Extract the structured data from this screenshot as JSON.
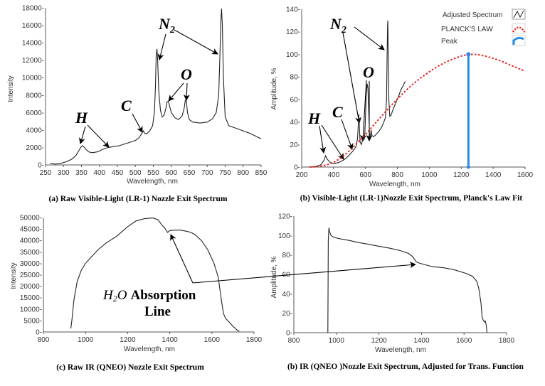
{
  "chart_data": [
    {
      "id": "a",
      "type": "line",
      "title": "(a) Raw Visible-Light (LR-1) Nozzle Exit Spectrum",
      "xlabel": "Wavelength, nm",
      "ylabel": "Intensity",
      "xlim": [
        250,
        850
      ],
      "ylim": [
        0,
        18000
      ],
      "xticks": [
        250,
        300,
        350,
        400,
        450,
        500,
        550,
        600,
        650,
        700,
        750,
        800,
        850
      ],
      "yticks": [
        0,
        2000,
        4000,
        6000,
        8000,
        10000,
        12000,
        14000,
        16000,
        18000
      ],
      "ytick_suffix": "-",
      "series": [
        {
          "name": "Raw spectrum",
          "x": [
            263,
            275,
            290,
            310,
            325,
            335,
            342,
            348,
            352,
            356,
            362,
            370,
            380,
            395,
            410,
            425,
            440,
            455,
            470,
            485,
            500,
            510,
            518,
            522,
            526,
            532,
            540,
            548,
            553,
            556,
            558,
            560,
            562,
            565,
            570,
            575,
            580,
            585,
            588,
            592,
            595,
            600,
            610,
            620,
            630,
            636,
            639,
            642,
            645,
            650,
            660,
            680,
            700,
            715,
            725,
            732,
            735,
            738,
            740,
            742,
            745,
            750,
            760,
            780,
            800,
            820,
            840,
            850
          ],
          "y": [
            200,
            100,
            150,
            400,
            700,
            1100,
            1600,
            2000,
            2200,
            2100,
            1800,
            1500,
            1400,
            1500,
            1800,
            2000,
            2100,
            2200,
            2400,
            2600,
            2800,
            3100,
            3600,
            3900,
            3600,
            3600,
            3900,
            4500,
            6000,
            9000,
            12500,
            13300,
            12000,
            8500,
            6200,
            5500,
            5700,
            6500,
            7200,
            7300,
            6800,
            6000,
            5400,
            5200,
            5600,
            6500,
            7400,
            7300,
            6000,
            5200,
            4900,
            4800,
            4900,
            5300,
            6000,
            8000,
            12000,
            16500,
            17900,
            16000,
            10000,
            5500,
            4500,
            4200,
            3900,
            3600,
            3200,
            3000
          ]
        }
      ],
      "annotations": [
        {
          "text": "H"
        },
        {
          "text": "C"
        },
        {
          "text": "N",
          "subscript": "2"
        },
        {
          "text": "O"
        }
      ]
    },
    {
      "id": "b",
      "type": "line",
      "title": "(b) Visible-Light (LR-1)Nozzle Exit Spectrum, Planck's Law Fit",
      "xlabel": "Wavelength, nm",
      "ylabel": "Amplitude, %",
      "xlim": [
        200,
        1600
      ],
      "ylim": [
        0,
        140
      ],
      "xticks": [
        200,
        400,
        600,
        800,
        1000,
        1200,
        1400,
        1600
      ],
      "yticks": [
        0,
        20,
        40,
        60,
        80,
        100,
        120,
        140
      ],
      "ytick_suffix": "-",
      "legend": [
        "Adjusted Spectrum",
        "PLANCK'S LAW",
        "Peak"
      ],
      "series": [
        {
          "name": "Adjusted Spectrum",
          "x": [
            255,
            290,
            320,
            340,
            350,
            360,
            380,
            400,
            430,
            460,
            480,
            500,
            520,
            540,
            550,
            555,
            558,
            562,
            566,
            575,
            585,
            592,
            596,
            600,
            605,
            610,
            615,
            620,
            625,
            630,
            635,
            640,
            650,
            660,
            680,
            700,
            715,
            725,
            732,
            735,
            738,
            740,
            742,
            746,
            752,
            760,
            775,
            790,
            805,
            820,
            835,
            845,
            850
          ],
          "y": [
            0,
            0.5,
            2,
            6,
            10,
            7,
            4,
            3,
            4,
            6,
            8,
            11,
            14,
            18,
            25,
            38,
            47,
            35,
            22,
            20,
            27,
            25,
            30,
            45,
            65,
            74,
            70,
            50,
            30,
            26,
            33,
            28,
            27,
            28,
            31,
            35,
            40,
            44,
            60,
            95,
            125,
            130,
            100,
            60,
            45,
            46,
            52,
            57,
            62,
            68,
            72,
            75,
            76
          ]
        },
        {
          "name": "PLANCK'S LAW",
          "x": [
            250,
            300,
            350,
            400,
            450,
            500,
            550,
            600,
            650,
            700,
            750,
            800,
            850,
            900,
            950,
            1000,
            1050,
            1100,
            1150,
            1200,
            1250,
            1300,
            1350,
            1400,
            1450,
            1500,
            1550,
            1600
          ],
          "y": [
            0,
            0.3,
            1.5,
            4,
            8.5,
            14.5,
            21.5,
            29,
            37,
            45,
            53,
            60.5,
            67.5,
            74,
            79.5,
            84.5,
            89,
            93,
            96,
            98.5,
            100,
            99.8,
            98.5,
            96.5,
            94,
            91,
            88,
            85
          ]
        }
      ],
      "peak": {
        "x": 1245,
        "y": 100
      }
    },
    {
      "id": "c",
      "type": "line",
      "title": "(c) Raw IR (QNEO) Nozzle Exit Spectrum",
      "xlabel": "Wavelength, nm",
      "ylabel": "Intensity",
      "xlim": [
        800,
        1800
      ],
      "ylim": [
        0,
        50000
      ],
      "xticks": [
        800,
        1000,
        1200,
        1400,
        1600,
        1800
      ],
      "yticks": [
        0,
        5000,
        10000,
        15000,
        20000,
        25000,
        30000,
        35000,
        40000,
        45000,
        50000
      ],
      "ytick_suffix": "-",
      "series": [
        {
          "name": "Raw IR spectrum",
          "x": [
            930,
            935,
            945,
            960,
            980,
            1000,
            1030,
            1060,
            1100,
            1150,
            1200,
            1240,
            1280,
            1320,
            1345,
            1360,
            1375,
            1390,
            1400,
            1420,
            1450,
            1480,
            1500,
            1520,
            1550,
            1580,
            1610,
            1630,
            1645,
            1655,
            1665,
            1680,
            1700,
            1720,
            1730
          ],
          "y": [
            1500,
            5000,
            14000,
            22000,
            27000,
            30000,
            33000,
            36000,
            39000,
            42000,
            46000,
            48500,
            49500,
            49800,
            49000,
            47000,
            45500,
            43500,
            44300,
            44500,
            44500,
            44000,
            43500,
            42500,
            40000,
            36000,
            30000,
            24000,
            14000,
            8000,
            6000,
            4500,
            2500,
            800,
            300
          ]
        }
      ]
    },
    {
      "id": "d",
      "type": "line",
      "title": "(b) IR (QNEO )Nozzle Exit Spectrum, Adjusted for Trans. Function",
      "xlabel": "Wavelength, nm",
      "ylabel": "Amplitude, %",
      "xlim": [
        800,
        1800
      ],
      "ylim": [
        0,
        120
      ],
      "xticks": [
        800,
        1000,
        1200,
        1400,
        1600,
        1800
      ],
      "yticks": [
        0,
        20,
        40,
        60,
        80,
        100,
        120
      ],
      "ytick_suffix": "-",
      "series": [
        {
          "name": "Adjusted IR spectrum",
          "x": [
            960,
            962,
            965,
            968,
            975,
            990,
            1020,
            1060,
            1100,
            1150,
            1200,
            1250,
            1300,
            1340,
            1360,
            1375,
            1385,
            1400,
            1450,
            1500,
            1550,
            1580,
            1610,
            1640,
            1660,
            1670,
            1680,
            1685,
            1690,
            1695,
            1700,
            1705,
            1708
          ],
          "y": [
            0,
            95,
            108,
            104,
            100,
            98,
            96.5,
            95,
            93,
            91,
            89,
            87,
            84.5,
            81.5,
            78,
            73,
            72,
            71,
            68,
            67,
            65,
            63,
            61,
            58,
            53,
            45,
            30,
            16,
            13,
            11,
            12,
            7,
            0
          ]
        }
      ]
    }
  ],
  "figure_text": {
    "water_label_h": "H",
    "water_label_2": "2",
    "water_label_o": "O",
    "absorption_word": "Absorption",
    "line_word": "Line"
  }
}
